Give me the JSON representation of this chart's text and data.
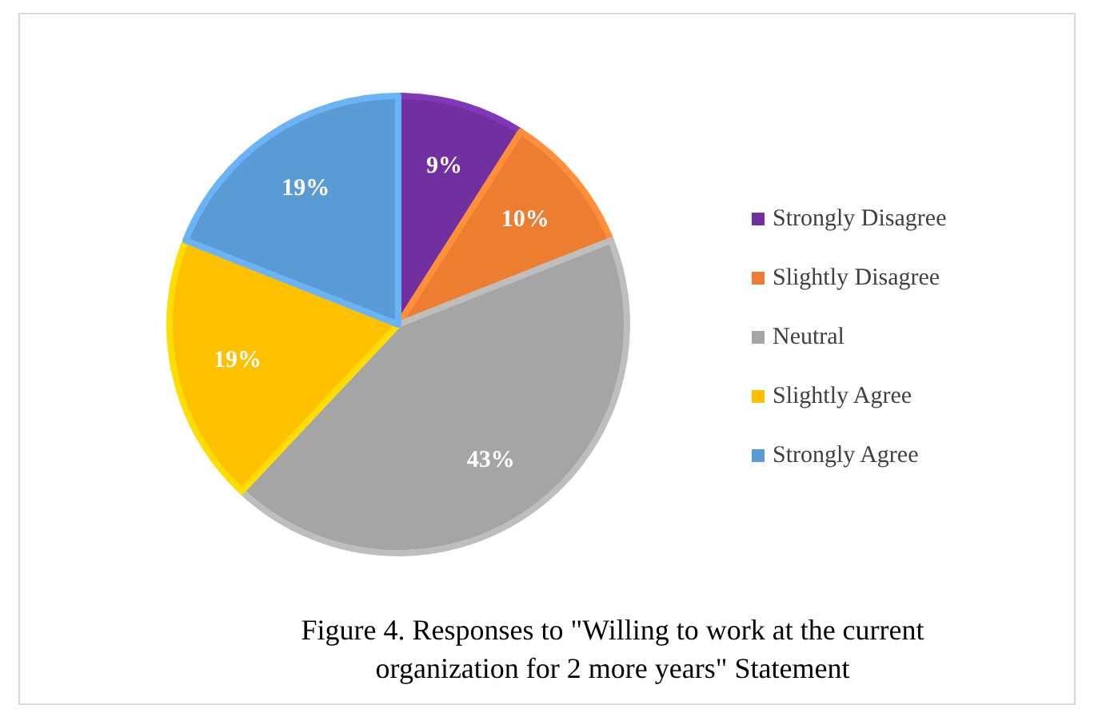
{
  "chart_data": {
    "type": "pie",
    "categories": [
      "Strongly Disagree",
      "Slightly Disagree",
      "Neutral",
      "Slightly Agree",
      "Strongly Agree"
    ],
    "values": [
      9,
      10,
      43,
      19,
      19
    ],
    "colors": [
      "#7030a0",
      "#ed7d31",
      "#a5a5a5",
      "#ffc000",
      "#5b9bd5"
    ],
    "value_labels": [
      "9%",
      "10%",
      "43%",
      "19%",
      "19%"
    ],
    "legend": "right",
    "annotations": [
      "Figure 4. Responses to \"Willing to work at the current organization for 2 more years\" Statement"
    ]
  }
}
